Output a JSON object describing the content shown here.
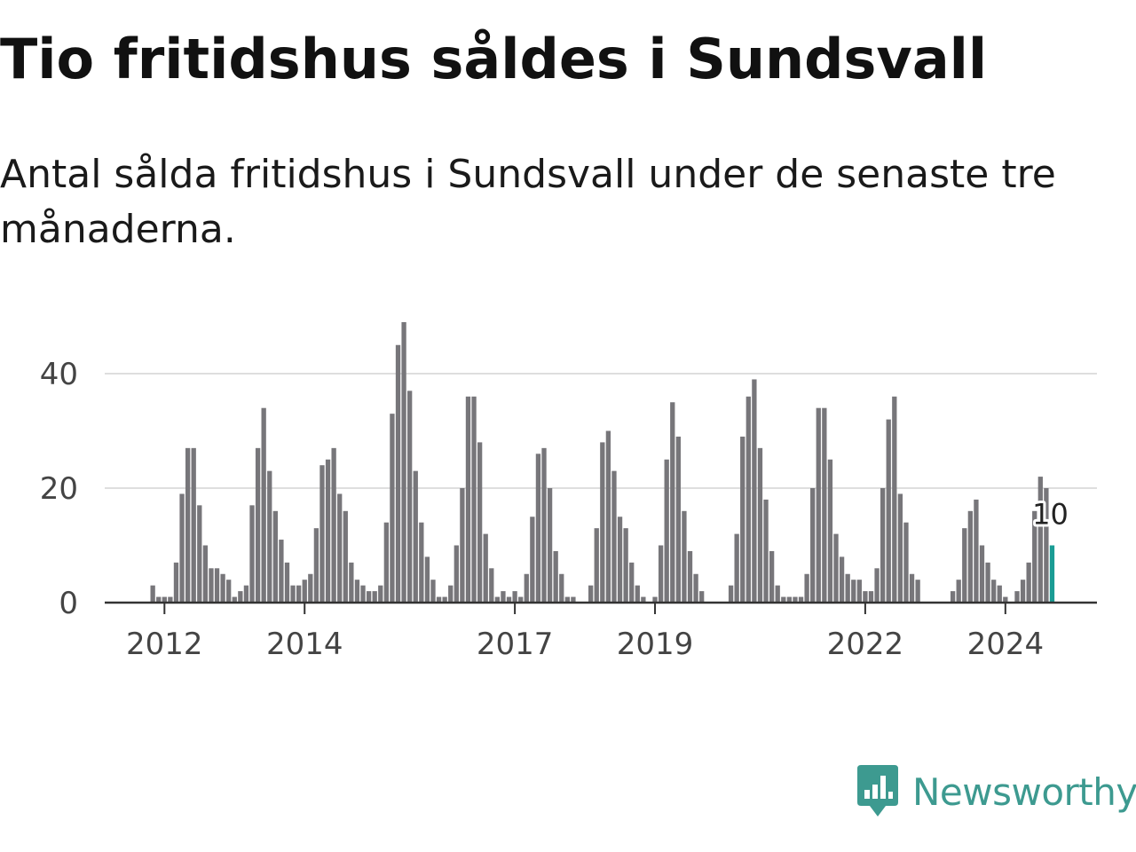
{
  "title": "Tio fritidshus såldes i Sundsvall",
  "subtitle": "Antal sålda fritidshus i Sundsvall under de senaste tre månaderna.",
  "brand": {
    "name": "Newsworthy",
    "color": "#3d9a90",
    "icon": "bar-chart-speech-bubble-icon"
  },
  "chart_data": {
    "type": "bar",
    "title": "Tio fritidshus såldes i Sundsvall",
    "subtitle": "Antal sålda fritidshus i Sundsvall under de senaste tre månaderna.",
    "xlabel": "",
    "ylabel": "",
    "bar_color": "#77767a",
    "highlight_color": "#1a9c94",
    "grid": true,
    "ylim": [
      0,
      50
    ],
    "yticks": [
      0,
      20,
      40
    ],
    "xticks": [
      "2012",
      "2014",
      "2017",
      "2019",
      "2022",
      "2024"
    ],
    "start_period": "2011-11",
    "frequency": "monthly",
    "values": [
      3,
      1,
      1,
      1,
      7,
      19,
      27,
      27,
      17,
      10,
      6,
      6,
      5,
      4,
      1,
      2,
      3,
      17,
      27,
      34,
      23,
      16,
      11,
      7,
      3,
      3,
      4,
      5,
      13,
      24,
      25,
      27,
      19,
      16,
      7,
      4,
      3,
      2,
      2,
      3,
      14,
      33,
      45,
      49,
      37,
      23,
      14,
      8,
      4,
      1,
      1,
      3,
      10,
      20,
      36,
      36,
      28,
      12,
      6,
      1,
      2,
      1,
      2,
      1,
      5,
      15,
      26,
      27,
      20,
      9,
      5,
      1,
      1,
      0,
      0,
      3,
      13,
      28,
      30,
      23,
      15,
      13,
      7,
      3,
      1,
      0,
      1,
      10,
      25,
      35,
      29,
      16,
      9,
      5,
      2,
      0,
      0,
      0,
      0,
      3,
      12,
      29,
      36,
      39,
      27,
      18,
      9,
      3,
      1,
      1,
      1,
      1,
      5,
      20,
      34,
      34,
      25,
      12,
      8,
      5,
      4,
      4,
      2,
      2,
      6,
      20,
      32,
      36,
      19,
      14,
      5,
      4,
      0,
      0,
      0,
      0,
      0,
      2,
      4,
      13,
      16,
      18,
      10,
      7,
      4,
      3,
      1,
      0,
      2,
      4,
      7,
      16,
      22,
      20,
      10
    ],
    "highlight_last": true,
    "last_value_label": "10"
  }
}
